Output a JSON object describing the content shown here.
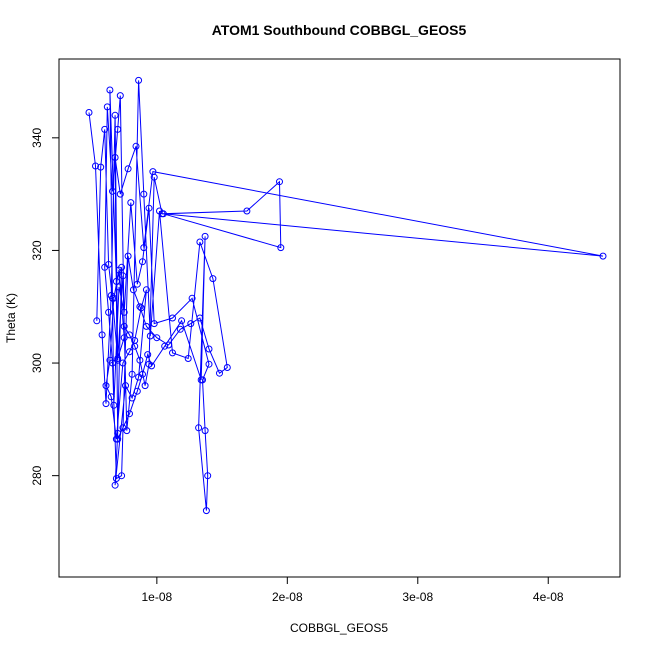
{
  "chart_data": {
    "type": "line",
    "title": "ATOM1 Southbound COBBGL_GEOS5",
    "xlabel": "COBBGL_GEOS5",
    "ylabel": "Theta (K)",
    "xlim": [
      2.5e-09,
      4.55e-08
    ],
    "ylim": [
      262,
      354
    ],
    "x_ticks": [
      1e-08,
      2e-08,
      3e-08,
      4e-08
    ],
    "x_tick_labels": [
      "1e-08",
      "2e-08",
      "3e-08",
      "4e-08"
    ],
    "y_ticks": [
      280,
      300,
      320,
      340
    ],
    "y_tick_labels": [
      "280",
      "300",
      "320",
      "340"
    ],
    "grid": false,
    "legend": "none",
    "series": [
      {
        "color": "#0000ff",
        "marker": "open-circle",
        "x": [
          4.8e-09,
          5.3e-09,
          5.8e-09,
          6.1e-09,
          6.5e-09,
          6.8e-09,
          7e-09,
          7.4e-09,
          7.7e-09,
          8.1e-09,
          8.6e-09,
          9e-09,
          9.5e-09,
          1.02e-08,
          1.12e-08,
          1.24e-08,
          1.33e-08,
          1.43e-08,
          1.54e-08,
          1.48e-08,
          1.4e-08,
          1.33e-08,
          1.26e-08,
          1.18e-08,
          1.09e-08,
          1e-08,
          9.2e-09,
          8.7e-09,
          8.2e-09,
          7.8e-09,
          7.3e-09,
          6.9e-09,
          6.6e-09,
          6.3e-09,
          6e-09,
          6.2e-09,
          6.6e-09,
          7e-09,
          7.2e-09,
          7.5e-09,
          7.9e-09,
          8.3e-09,
          8.7e-09,
          9.1e-09,
          9.4e-09,
          9.8e-09,
          1.04e-08,
          1.69e-08,
          1.94e-08,
          1.95e-08,
          1.05e-08,
          4.42e-08,
          9.7e-09,
          9e-09,
          8.4e-09,
          7.8e-09,
          7.2e-09,
          6.8e-09,
          7e-09,
          7.4e-09,
          7.9e-09,
          8.5e-09,
          8.9e-09,
          9.3e-09,
          9.6e-09,
          1.06e-08,
          1.19e-08,
          1.34e-08,
          1.37e-08,
          1.32e-08,
          1.38e-08,
          1.39e-08,
          1.37e-08,
          1.35e-08,
          1.4e-08,
          1.27e-08,
          1.12e-08,
          9.8e-09,
          9.4e-09,
          8.9e-09,
          8.5e-09,
          8e-09,
          7.5e-09,
          7.1e-09,
          6.7e-09,
          6.4e-09,
          6.9e-09,
          7.3e-09,
          7e-09,
          6.8e-09,
          7.6e-09,
          8.1e-09,
          8.6e-09,
          9.2e-09,
          8.8e-09,
          8.3e-09,
          7.9e-09,
          7.4e-09,
          6.9e-09,
          6.5e-09,
          6.1e-09,
          6.4e-09,
          6.7e-09,
          7.1e-09,
          7.5e-09,
          7e-09,
          6.6e-09,
          6.3e-09,
          6e-09,
          5.7e-09,
          5.4e-09
        ],
        "y": [
          344.5,
          335.0,
          305.0,
          292.8,
          312.0,
          344.0,
          300.5,
          315.5,
          288.0,
          298.0,
          350.2,
          330.0,
          304.8,
          327.0,
          301.8,
          300.8,
          321.5,
          315.0,
          299.2,
          298.2,
          302.5,
          308.0,
          307.0,
          306.0,
          303.2,
          304.5,
          306.5,
          310.0,
          313.0,
          319.0,
          280.0,
          279.5,
          300.0,
          309.0,
          317.0,
          345.5,
          330.5,
          341.5,
          347.5,
          306.5,
          305.0,
          303.0,
          300.5,
          296.0,
          299.8,
          333.0,
          326.5,
          327.0,
          332.2,
          320.5,
          326.5,
          319.0,
          334.0,
          320.5,
          338.5,
          334.5,
          330.0,
          336.5,
          286.5,
          288.5,
          291.0,
          295.0,
          298.0,
          301.5,
          299.5,
          303.0,
          307.5,
          297.0,
          322.5,
          288.5,
          273.8,
          280.0,
          288.0,
          297.0,
          299.8,
          311.5,
          308.0,
          307.0,
          327.5,
          318.0,
          314.0,
          328.5,
          309.0,
          313.5,
          292.5,
          348.5,
          314.5,
          317.0,
          287.5,
          278.3,
          296.0,
          293.8,
          297.5,
          313.0,
          309.8,
          304.0,
          302.0,
          300.0,
          286.5,
          294.0,
          296.0,
          300.5,
          311.5,
          316.5,
          304.5,
          300.8,
          311.5,
          317.5,
          341.5,
          334.8,
          307.5
        ]
      }
    ]
  }
}
